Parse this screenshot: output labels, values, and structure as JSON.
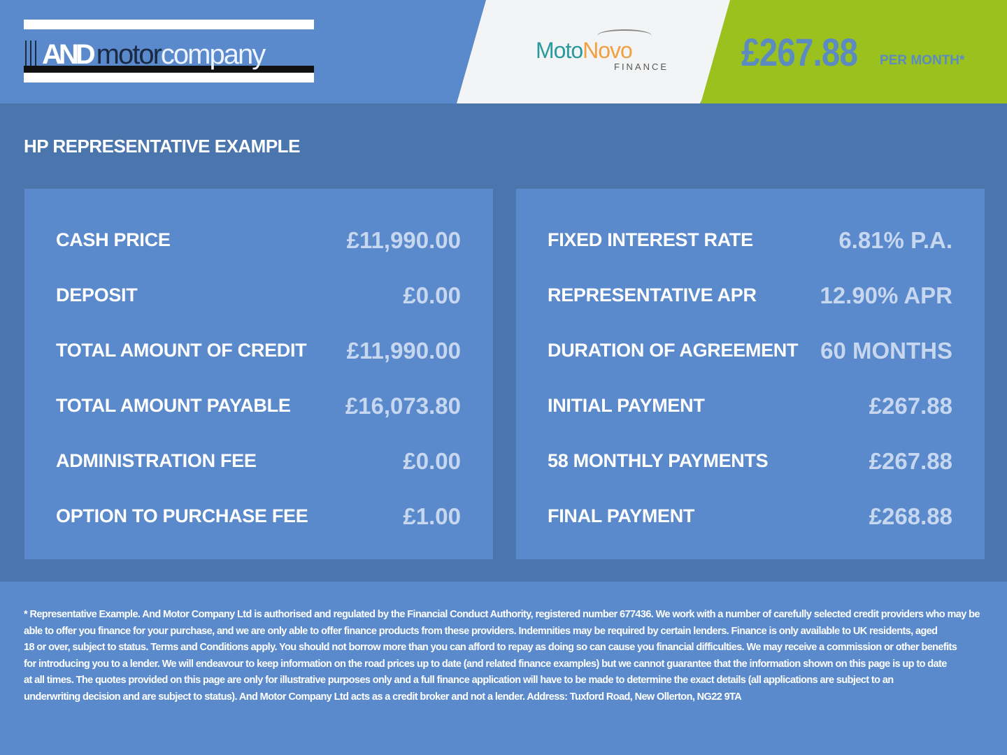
{
  "header": {
    "dealer_logo": {
      "and": "AND",
      "motor": "motor",
      "company": "company"
    },
    "finance_logo": {
      "moto": "Moto",
      "novo": "Novo",
      "finance": "FINANCE"
    },
    "monthly_price": "£267.88",
    "per_month_label": "PER MONTH*",
    "colors": {
      "header_bg": "#5a8acb",
      "green": "#9bc11e",
      "panel_bg": "#5a8acb",
      "band_bg": "#4a76ad"
    }
  },
  "main": {
    "title": "HP REPRESENTATIVE EXAMPLE",
    "left_rows": [
      {
        "label": "CASH PRICE",
        "value": "£11,990.00"
      },
      {
        "label": "DEPOSIT",
        "value": "£0.00"
      },
      {
        "label": "TOTAL AMOUNT OF CREDIT",
        "value": "£11,990.00"
      },
      {
        "label": "TOTAL AMOUNT PAYABLE",
        "value": "£16,073.80"
      },
      {
        "label": "ADMINISTRATION FEE",
        "value": "£0.00"
      },
      {
        "label": "OPTION TO PURCHASE FEE",
        "value": "£1.00"
      }
    ],
    "right_rows": [
      {
        "label": "FIXED INTEREST RATE",
        "value": "6.81% P.A."
      },
      {
        "label": "REPRESENTATIVE APR",
        "value": "12.90% APR"
      },
      {
        "label": "DURATION OF AGREEMENT",
        "value": "60 MONTHS"
      },
      {
        "label": "INITIAL PAYMENT",
        "value": "£267.88"
      },
      {
        "label": "58 MONTHLY PAYMENTS",
        "value": "£267.88"
      },
      {
        "label": "FINAL PAYMENT",
        "value": "£268.88"
      }
    ]
  },
  "footer": {
    "lines": [
      "* Representative Example. And Motor Company Ltd is authorised and regulated by the Financial Conduct Authority, registered number 677436. We work with a number of carefully selected credit providers who may be",
      "able to offer you finance for your purchase, and we are only able to offer finance products from these providers. Indemnities may be required by certain lenders. Finance is only available to UK residents, aged",
      "18 or over, subject to status. Terms and Conditions apply. You should not borrow more than you can afford to repay as doing so can cause you financial difficulties. We may receive a commission or other benefits",
      "for introducing you to a lender. We will endeavour to keep information on the road prices up to date (and related finance examples) but we cannot guarantee that the information shown on this page is up to date",
      "at all times. The quotes provided on this page are only for illustrative purposes only and a full finance application will have to be made to determine the exact details (all applications are subject to an",
      "underwriting decision and are subject to status). And Motor Company Ltd acts as a credit broker and not a lender. Address: Tuxford Road, New Ollerton, NG22 9TA"
    ]
  }
}
